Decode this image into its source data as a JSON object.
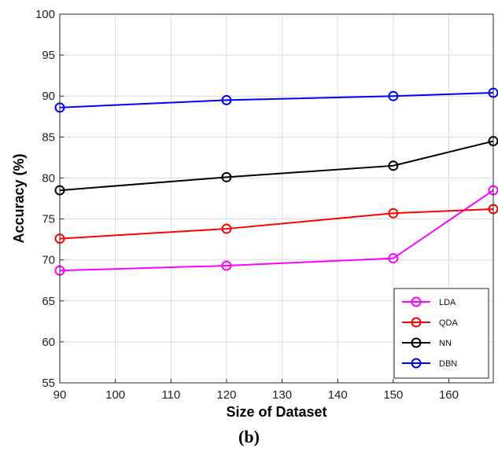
{
  "chart_data": {
    "type": "line",
    "xlabel": "Size of Dataset",
    "ylabel": "Accuracy (%)",
    "caption": "(b)",
    "xlim": [
      90,
      168
    ],
    "ylim": [
      55,
      100
    ],
    "xticks": [
      90,
      100,
      110,
      120,
      130,
      140,
      150,
      160
    ],
    "yticks": [
      55,
      60,
      65,
      70,
      75,
      80,
      85,
      90,
      95,
      100
    ],
    "grid": true,
    "legend_position": "bottom-right",
    "x": [
      90,
      120,
      150,
      168
    ],
    "series": [
      {
        "name": "LDA",
        "color": "#ff00ff",
        "values": [
          68.7,
          69.3,
          70.2,
          78.5
        ]
      },
      {
        "name": "QDA",
        "color": "#ff0000",
        "values": [
          72.6,
          73.8,
          75.7,
          76.2
        ]
      },
      {
        "name": "NN",
        "color": "#000000",
        "values": [
          78.5,
          80.1,
          81.5,
          84.5
        ]
      },
      {
        "name": "DBN",
        "color": "#0000ff",
        "values": [
          88.6,
          89.5,
          90.0,
          90.4
        ]
      }
    ],
    "marker": "circle"
  }
}
